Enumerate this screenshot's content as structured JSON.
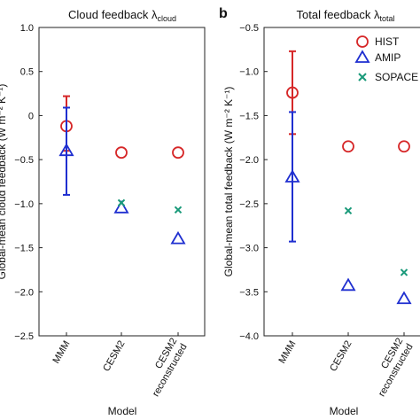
{
  "chart_data": [
    {
      "type": "scatter",
      "title": "Cloud feedback λ",
      "title_sub": "cloud",
      "ylabel": "Global-mean cloud feedback (W m⁻² K⁻¹)",
      "xlabel": "Model",
      "categories": [
        "MMM",
        "CESM2",
        "CESM2 reconstructed"
      ],
      "ylim": [
        -2.5,
        1.0
      ],
      "yticks": [
        1.0,
        0.5,
        0,
        -0.5,
        -1.0,
        -1.5,
        -2.0,
        -2.5
      ],
      "ytick_labels": [
        "1.0",
        "0.5",
        "0",
        "−0.5",
        "−1.0",
        "−1.5",
        "−2.0",
        "−2.5"
      ],
      "grid": false,
      "series": [
        {
          "name": "HIST",
          "marker": "circle",
          "color": "#d62728",
          "values": [
            -0.12,
            -0.42,
            -0.42
          ],
          "err_low": [
            -0.4,
            null,
            null
          ],
          "err_high": [
            0.22,
            null,
            null
          ]
        },
        {
          "name": "AMIP",
          "marker": "triangle",
          "color": "#1f2fd0",
          "values": [
            -0.4,
            -1.05,
            -1.4
          ],
          "err_low": [
            -0.9,
            null,
            null
          ],
          "err_high": [
            0.09,
            null,
            null
          ]
        },
        {
          "name": "SOPACE",
          "marker": "x",
          "color": "#1a9a7a",
          "values": [
            null,
            -0.99,
            -1.07
          ]
        }
      ]
    },
    {
      "type": "scatter",
      "panel_letter": "b",
      "title": "Total feedback λ",
      "title_sub": "total",
      "ylabel": "Global-mean total feedback (W m⁻² K⁻¹)",
      "xlabel": "Model",
      "categories": [
        "MMM",
        "CESM2",
        "CESM2 reconstructed"
      ],
      "ylim": [
        -4.0,
        -0.5
      ],
      "yticks": [
        -0.5,
        -1.0,
        -1.5,
        -2.0,
        -2.5,
        -3.0,
        -3.5,
        -4.0
      ],
      "ytick_labels": [
        "−0.5",
        "−1.0",
        "−1.5",
        "−2.0",
        "−2.5",
        "−3.0",
        "−3.5",
        "−4.0"
      ],
      "grid": false,
      "legend": "top-right",
      "series": [
        {
          "name": "HIST",
          "marker": "circle",
          "color": "#d62728",
          "values": [
            -1.24,
            -1.85,
            -1.85
          ],
          "err_low": [
            -1.71,
            null,
            null
          ],
          "err_high": [
            -0.77,
            null,
            null
          ]
        },
        {
          "name": "AMIP",
          "marker": "triangle",
          "color": "#1f2fd0",
          "values": [
            -2.2,
            -3.43,
            -3.58
          ],
          "err_low": [
            -2.93,
            null,
            null
          ],
          "err_high": [
            -1.46,
            null,
            null
          ]
        },
        {
          "name": "SOPACE",
          "marker": "x",
          "color": "#1a9a7a",
          "values": [
            null,
            -2.58,
            -3.28
          ]
        }
      ]
    }
  ]
}
